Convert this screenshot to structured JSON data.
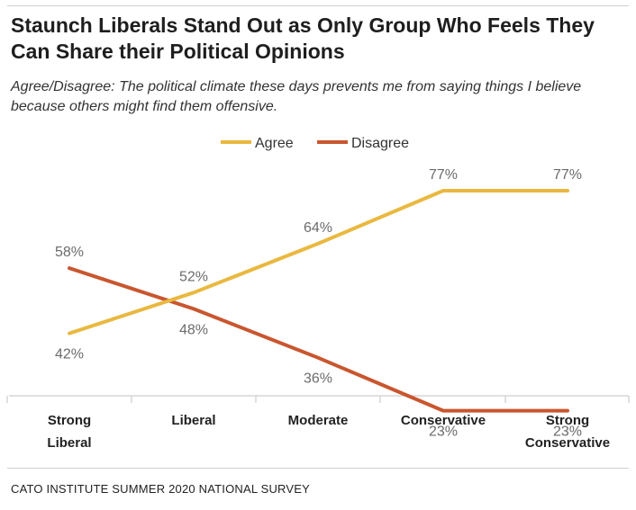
{
  "title": "Staunch Liberals Stand Out as Only Group Who Feels They Can Share their Political Opinions",
  "subtitle": "Agree/Disagree: The political climate these days prevents me from saying things I believe because others might find them offensive.",
  "source": "CATO INSTITUTE SUMMER 2020 NATIONAL SURVEY",
  "colors": {
    "agree": "#e9b83f",
    "disagree": "#c9562f",
    "axis": "#d6d6d6"
  },
  "chart_data": {
    "type": "line",
    "title": "Staunch Liberals Stand Out as Only Group Who Feels They Can Share their Political Opinions",
    "subtitle": "Agree/Disagree: The political climate these days prevents me from saying things I believe because others might find them offensive.",
    "categories": [
      [
        "Strong",
        "Liberal"
      ],
      [
        "Liberal"
      ],
      [
        "Moderate"
      ],
      [
        "Conservative"
      ],
      [
        "Strong",
        "Conservative"
      ]
    ],
    "series": [
      {
        "name": "Agree",
        "values": [
          42,
          52,
          64,
          77,
          77
        ],
        "labels": [
          "42%",
          "52%",
          "64%",
          "77%",
          "77%"
        ]
      },
      {
        "name": "Disagree",
        "values": [
          58,
          48,
          36,
          23,
          23
        ],
        "labels": [
          "58%",
          "48%",
          "36%",
          "23%",
          "23%"
        ]
      }
    ],
    "legend": "top-center",
    "grid": false,
    "unit": "%"
  }
}
